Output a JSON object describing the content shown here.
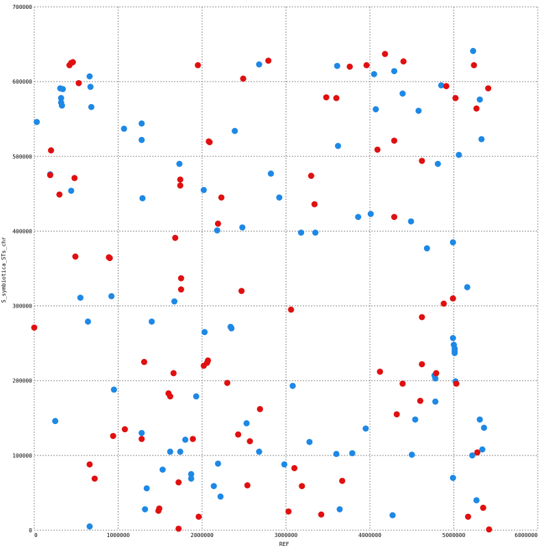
{
  "chart_data": {
    "type": "scatter",
    "xlabel": "REF",
    "ylabel": "S_symbiotica_STs_chr",
    "xlim": [
      0,
      6000000
    ],
    "ylim": [
      0,
      700000
    ],
    "x_ticks": [
      "0",
      "1000000",
      "2000000",
      "3000000",
      "4000000",
      "5000000",
      "6000000"
    ],
    "y_ticks": [
      "0",
      "100000",
      "200000",
      "300000",
      "400000",
      "500000",
      "600000",
      "700000"
    ],
    "grid": true,
    "colors": {
      "blue": "#1e88e5",
      "red": "#e01010",
      "grid": "#888888"
    },
    "series": [
      {
        "color": "blue",
        "points": [
          [
            30000,
            546000
          ],
          [
            190000,
            476000
          ],
          [
            250000,
            146000
          ],
          [
            310000,
            591000
          ],
          [
            320000,
            578000
          ],
          [
            320000,
            572000
          ],
          [
            330000,
            568000
          ],
          [
            340000,
            590000
          ],
          [
            440000,
            454000
          ],
          [
            550000,
            311000
          ],
          [
            640000,
            279000
          ],
          [
            660000,
            5000
          ],
          [
            660000,
            607000
          ],
          [
            670000,
            593000
          ],
          [
            680000,
            566000
          ],
          [
            920000,
            313000
          ],
          [
            950000,
            188000
          ],
          [
            1070000,
            537000
          ],
          [
            1280000,
            544000
          ],
          [
            1280000,
            522000
          ],
          [
            1290000,
            444000
          ],
          [
            1280000,
            130000
          ],
          [
            1320000,
            28000
          ],
          [
            1340000,
            56000
          ],
          [
            1400000,
            279000
          ],
          [
            1530000,
            81000
          ],
          [
            1620000,
            105000
          ],
          [
            1670000,
            306000
          ],
          [
            1730000,
            490000
          ],
          [
            1740000,
            105000
          ],
          [
            1800000,
            121000
          ],
          [
            1870000,
            75000
          ],
          [
            1870000,
            69000
          ],
          [
            1930000,
            179000
          ],
          [
            2020000,
            455000
          ],
          [
            2030000,
            265000
          ],
          [
            2140000,
            59000
          ],
          [
            2180000,
            401000
          ],
          [
            2190000,
            89000
          ],
          [
            2220000,
            45000
          ],
          [
            2340000,
            272000
          ],
          [
            2350000,
            270000
          ],
          [
            2390000,
            534000
          ],
          [
            2480000,
            405000
          ],
          [
            2530000,
            143000
          ],
          [
            2680000,
            623000
          ],
          [
            2680000,
            105000
          ],
          [
            2820000,
            477000
          ],
          [
            2920000,
            445000
          ],
          [
            2980000,
            88000
          ],
          [
            3080000,
            193000
          ],
          [
            3180000,
            398000
          ],
          [
            3280000,
            118000
          ],
          [
            3350000,
            398000
          ],
          [
            3600000,
            102000
          ],
          [
            3610000,
            621000
          ],
          [
            3620000,
            514000
          ],
          [
            3640000,
            28000
          ],
          [
            3790000,
            103000
          ],
          [
            3860000,
            419000
          ],
          [
            3950000,
            136000
          ],
          [
            4010000,
            423000
          ],
          [
            4050000,
            610000
          ],
          [
            4070000,
            563000
          ],
          [
            4270000,
            20000
          ],
          [
            4290000,
            614000
          ],
          [
            4390000,
            584000
          ],
          [
            4490000,
            413000
          ],
          [
            4500000,
            101000
          ],
          [
            4540000,
            148000
          ],
          [
            4580000,
            561000
          ],
          [
            4680000,
            377000
          ],
          [
            4770000,
            207000
          ],
          [
            4780000,
            203000
          ],
          [
            4780000,
            172000
          ],
          [
            4810000,
            490000
          ],
          [
            4850000,
            595000
          ],
          [
            4990000,
            257000
          ],
          [
            4990000,
            385000
          ],
          [
            4990000,
            70000
          ],
          [
            5000000,
            248000
          ],
          [
            5010000,
            243000
          ],
          [
            5010000,
            240000
          ],
          [
            5010000,
            237000
          ],
          [
            5020000,
            199000
          ],
          [
            5060000,
            502000
          ],
          [
            5160000,
            325000
          ],
          [
            5220000,
            100000
          ],
          [
            5230000,
            641000
          ],
          [
            5270000,
            40000
          ],
          [
            5310000,
            148000
          ],
          [
            5310000,
            576000
          ],
          [
            5330000,
            523000
          ],
          [
            5340000,
            108000
          ],
          [
            5360000,
            137000
          ]
        ]
      },
      {
        "color": "red",
        "points": [
          [
            0,
            271000
          ],
          [
            190000,
            475000
          ],
          [
            200000,
            508000
          ],
          [
            300000,
            449000
          ],
          [
            420000,
            622000
          ],
          [
            440000,
            625000
          ],
          [
            460000,
            626000
          ],
          [
            480000,
            471000
          ],
          [
            490000,
            366000
          ],
          [
            530000,
            598000
          ],
          [
            660000,
            88000
          ],
          [
            720000,
            69000
          ],
          [
            890000,
            365000
          ],
          [
            900000,
            364000
          ],
          [
            940000,
            126000
          ],
          [
            1080000,
            135000
          ],
          [
            1280000,
            122000
          ],
          [
            1310000,
            225000
          ],
          [
            1480000,
            26000
          ],
          [
            1490000,
            29000
          ],
          [
            1600000,
            183000
          ],
          [
            1620000,
            179000
          ],
          [
            1660000,
            210000
          ],
          [
            1680000,
            391000
          ],
          [
            1720000,
            2000
          ],
          [
            1720000,
            64000
          ],
          [
            1740000,
            469000
          ],
          [
            1740000,
            461000
          ],
          [
            1750000,
            337000
          ],
          [
            1750000,
            322000
          ],
          [
            1890000,
            122000
          ],
          [
            1950000,
            622000
          ],
          [
            1960000,
            18000
          ],
          [
            2020000,
            220000
          ],
          [
            2060000,
            224000
          ],
          [
            2070000,
            227000
          ],
          [
            2080000,
            520000
          ],
          [
            2090000,
            519000
          ],
          [
            2190000,
            410000
          ],
          [
            2230000,
            445000
          ],
          [
            2300000,
            197000
          ],
          [
            2430000,
            128000
          ],
          [
            2470000,
            320000
          ],
          [
            2490000,
            604000
          ],
          [
            2540000,
            60000
          ],
          [
            2570000,
            119000
          ],
          [
            2690000,
            162000
          ],
          [
            2790000,
            628000
          ],
          [
            3030000,
            25000
          ],
          [
            3060000,
            295000
          ],
          [
            3100000,
            83000
          ],
          [
            3190000,
            59000
          ],
          [
            3300000,
            474000
          ],
          [
            3340000,
            436000
          ],
          [
            3420000,
            21000
          ],
          [
            3480000,
            579000
          ],
          [
            3600000,
            578000
          ],
          [
            3670000,
            66000
          ],
          [
            3760000,
            620000
          ],
          [
            3960000,
            622000
          ],
          [
            4090000,
            509000
          ],
          [
            4120000,
            212000
          ],
          [
            4180000,
            637000
          ],
          [
            4290000,
            521000
          ],
          [
            4290000,
            419000
          ],
          [
            4320000,
            155000
          ],
          [
            4390000,
            196000
          ],
          [
            4400000,
            627000
          ],
          [
            4600000,
            173000
          ],
          [
            4620000,
            285000
          ],
          [
            4620000,
            222000
          ],
          [
            4620000,
            494000
          ],
          [
            4790000,
            210000
          ],
          [
            4880000,
            303000
          ],
          [
            4910000,
            594000
          ],
          [
            4990000,
            310000
          ],
          [
            5020000,
            578000
          ],
          [
            5030000,
            196000
          ],
          [
            5170000,
            18000
          ],
          [
            5240000,
            622000
          ],
          [
            5270000,
            564000
          ],
          [
            5280000,
            104000
          ],
          [
            5350000,
            30000
          ],
          [
            5410000,
            591000
          ],
          [
            5420000,
            1000
          ]
        ]
      }
    ]
  }
}
